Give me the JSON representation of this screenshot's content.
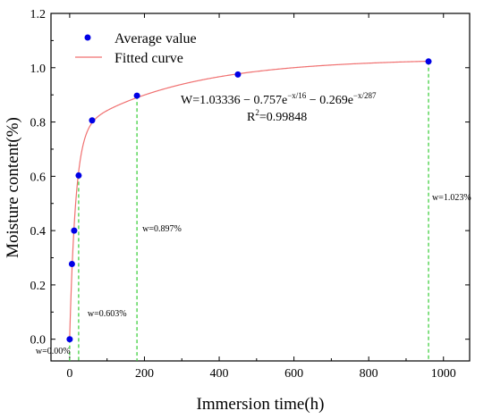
{
  "chart_data": {
    "type": "scatter",
    "xlabel": "Immersion time(h)",
    "ylabel": "Moisture content(%)",
    "xlim": [
      -50,
      1070
    ],
    "ylim": [
      -0.08,
      1.2
    ],
    "xticks": [
      0,
      200,
      400,
      600,
      800,
      1000
    ],
    "yticks": [
      0.0,
      0.2,
      0.4,
      0.6,
      0.8,
      1.0,
      1.2
    ],
    "x_tick_labels": [
      "0",
      "200",
      "400",
      "600",
      "800",
      "1000"
    ],
    "y_tick_labels": [
      "0.0",
      "0.2",
      "0.4",
      "0.6",
      "0.8",
      "1.0",
      "1.2"
    ],
    "legend_position": "top-left",
    "series": [
      {
        "name": "Average value",
        "kind": "scatter",
        "color": "#0000e6",
        "x": [
          0,
          6,
          12,
          24,
          60,
          180,
          450,
          960
        ],
        "y": [
          0.0,
          0.277,
          0.4,
          0.603,
          0.806,
          0.897,
          0.975,
          1.023
        ]
      },
      {
        "name": "Fitted curve",
        "kind": "line",
        "color": "#f07070",
        "model": {
          "a": 1.03336,
          "b": 0.757,
          "t1": 16,
          "c": 0.269,
          "t2": 287
        },
        "x_range": [
          0,
          965
        ]
      }
    ],
    "annotations": {
      "equation": "W=1.03336 − 0.757e",
      "exp1": "−x/16",
      "eq_mid": " − 0.269e",
      "exp2": "−x/287",
      "r2_base": "R",
      "r2_sup": "2",
      "r2_val": "=0.99848"
    },
    "drop_lines": [
      {
        "x": 0,
        "y": 0.0,
        "label": "w=0.00%"
      },
      {
        "x": 24,
        "y": 0.603,
        "label": "w=0.603%"
      },
      {
        "x": 180,
        "y": 0.897,
        "label": "w=0.897%"
      },
      {
        "x": 960,
        "y": 1.023,
        "label": "w=1.023%"
      }
    ],
    "drop_line_color": "#33cc33"
  }
}
